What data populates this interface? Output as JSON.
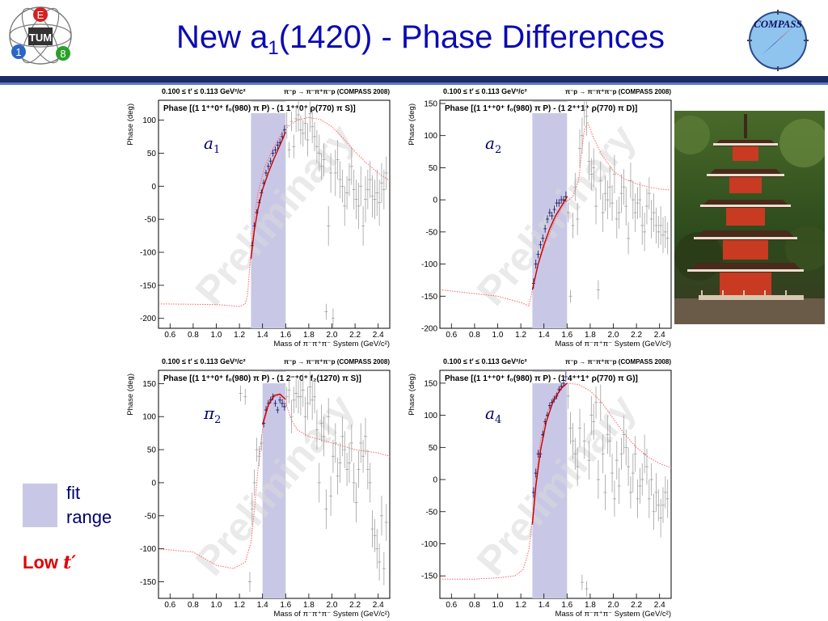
{
  "slide": {
    "title_main": "New a",
    "title_sub": "1",
    "title_rest": "(1420) - Phase Differences",
    "legend_label": "fit\nrange",
    "low_label": "Low ",
    "low_t": "t′",
    "left_logo_letters": [
      "E",
      "1",
      "8"
    ],
    "left_logo_center": "TUM",
    "right_logo_text": "COMPASS",
    "colors": {
      "title": "#0a0ab4",
      "header_bar": "#1d2b66",
      "fit_band": "#c8c8e6",
      "fit_curve": "#cc0000",
      "model_curve": "#ff6060",
      "low_t": "#e00000"
    }
  },
  "chart_data": [
    {
      "type": "scatter",
      "label": "a_1",
      "title_top": "0.100 ≤ t′ ≤ 0.113 GeV²/c²",
      "title_right": "π⁻p → π⁻π⁺π⁻p (COMPASS 2008)",
      "subtitle": "Phase [(1 1⁺⁺0⁺ f₀(980) π P) - (1 1⁺⁺0⁺ ρ(770) π S)]",
      "xlabel": "Mass of π⁻π⁺π⁻ System (GeV/c²)",
      "ylabel": "Phase (deg)",
      "xlim": [
        0.5,
        2.5
      ],
      "ylim": [
        -215,
        130
      ],
      "xticks": [
        0.6,
        0.8,
        1.0,
        1.2,
        1.4,
        1.6,
        1.8,
        2.0,
        2.2,
        2.4
      ],
      "xtick_labels": [
        "0.6",
        "0.8",
        "1.0",
        "1.2",
        "1.4",
        "1.6",
        "1.8",
        "2.0",
        "2.2",
        "2.4"
      ],
      "yticks": [
        -200,
        -150,
        -100,
        -50,
        0,
        50,
        100
      ],
      "ytick_labels": [
        "-200",
        "-150",
        "-100",
        "-50",
        "0",
        "50",
        "100"
      ],
      "fit_range": [
        1.3,
        1.6
      ],
      "watermark": "Preliminary",
      "model_curve": {
        "x": [
          0.5,
          1.0,
          1.2,
          1.25,
          1.27,
          1.29,
          1.32,
          1.36,
          1.42,
          1.5,
          1.58,
          1.7,
          1.8,
          1.9,
          2.0,
          2.1,
          2.2,
          2.3,
          2.4,
          2.5
        ],
        "y": [
          -178,
          -179,
          -182,
          -178,
          -165,
          -120,
          -60,
          -10,
          30,
          60,
          85,
          100,
          104,
          101,
          90,
          72,
          52,
          35,
          20,
          8
        ]
      },
      "fit_curve": {
        "x": [
          1.3,
          1.33,
          1.36,
          1.4,
          1.45,
          1.5,
          1.55,
          1.6
        ],
        "y": [
          -110,
          -65,
          -35,
          -5,
          20,
          42,
          62,
          82
        ]
      },
      "points": {
        "x": [
          1.31,
          1.33,
          1.35,
          1.37,
          1.39,
          1.41,
          1.43,
          1.45,
          1.47,
          1.49,
          1.51,
          1.53,
          1.55,
          1.57,
          1.59,
          1.61,
          1.63,
          1.65,
          1.67,
          1.69,
          1.71,
          1.73,
          1.75,
          1.77,
          1.79,
          1.81,
          1.83,
          1.85,
          1.87,
          1.89,
          1.91,
          1.93,
          1.95,
          1.97,
          1.99,
          2.01,
          2.03,
          2.05,
          2.07,
          2.09,
          2.11,
          2.13,
          2.15,
          2.17,
          2.19,
          2.21,
          2.23,
          2.25,
          2.27,
          2.29,
          2.31,
          2.33,
          2.35,
          2.37,
          2.39,
          2.41,
          2.43,
          2.45,
          2.47
        ],
        "y": [
          -90,
          -60,
          -40,
          -25,
          -10,
          5,
          20,
          30,
          38,
          50,
          55,
          62,
          66,
          75,
          85,
          92,
          55,
          98,
          60,
          102,
          108,
          85,
          80,
          95,
          70,
          110,
          90,
          75,
          60,
          50,
          30,
          40,
          -190,
          -60,
          20,
          -200,
          20,
          40,
          10,
          0,
          -30,
          -10,
          10,
          30,
          -5,
          -20,
          -30,
          0,
          -60,
          -20,
          -5,
          10,
          -15,
          -20,
          -10,
          -25,
          5,
          -5,
          20
        ],
        "err": [
          6,
          5,
          5,
          5,
          5,
          5,
          5,
          5,
          5,
          5,
          5,
          6,
          6,
          6,
          7,
          20,
          12,
          15,
          18,
          20,
          25,
          22,
          20,
          25,
          25,
          28,
          25,
          22,
          25,
          28,
          20,
          25,
          12,
          30,
          30,
          15,
          35,
          30,
          28,
          25,
          30,
          25,
          25,
          28,
          30,
          30,
          35,
          30,
          30,
          35,
          30,
          28,
          32,
          30,
          35,
          35,
          30,
          30,
          25
        ]
      }
    },
    {
      "type": "scatter",
      "label": "a_2",
      "title_top": "0.100 ≤ t′ ≤ 0.113 GeV²/c²",
      "title_right": "π⁻p → π⁻π⁺π⁻p (COMPASS 2008)",
      "subtitle": "Phase [(1 1⁺⁺0⁺ f₀(980) π P) - (1 2⁺⁺1⁺ ρ(770) π D)]",
      "xlabel": "Mass of π⁻π⁺π⁻ System (GeV/c²)",
      "ylabel": "Phase (deg)",
      "xlim": [
        0.5,
        2.5
      ],
      "ylim": [
        -200,
        155
      ],
      "xticks": [
        0.6,
        0.8,
        1.0,
        1.2,
        1.4,
        1.6,
        1.8,
        2.0,
        2.2,
        2.4
      ],
      "xtick_labels": [
        "0.6",
        "0.8",
        "1.0",
        "1.2",
        "1.4",
        "1.6",
        "1.8",
        "2.0",
        "2.2",
        "2.4"
      ],
      "yticks": [
        -200,
        -150,
        -100,
        -50,
        0,
        50,
        100,
        150
      ],
      "ytick_labels": [
        "-200",
        "-150",
        "-100",
        "-50",
        "0",
        "50",
        "100",
        "150"
      ],
      "fit_range": [
        1.3,
        1.6
      ],
      "watermark": "Preliminary",
      "model_curve": {
        "x": [
          0.5,
          1.0,
          1.2,
          1.27,
          1.3,
          1.35,
          1.42,
          1.5,
          1.58,
          1.65,
          1.7,
          1.73,
          1.75,
          1.78,
          1.82,
          1.9,
          2.0,
          2.1,
          2.2,
          2.3,
          2.4,
          2.5
        ],
        "y": [
          -140,
          -150,
          -160,
          -165,
          -140,
          -100,
          -65,
          -30,
          -5,
          5,
          30,
          80,
          110,
          120,
          100,
          70,
          45,
          32,
          25,
          20,
          17,
          15
        ]
      },
      "fit_curve": {
        "x": [
          1.3,
          1.35,
          1.4,
          1.45,
          1.5,
          1.55,
          1.6
        ],
        "y": [
          -140,
          -100,
          -70,
          -45,
          -25,
          -10,
          5
        ]
      },
      "points": {
        "x": [
          1.31,
          1.33,
          1.35,
          1.37,
          1.39,
          1.41,
          1.43,
          1.45,
          1.47,
          1.49,
          1.51,
          1.53,
          1.55,
          1.57,
          1.59,
          1.61,
          1.63,
          1.65,
          1.67,
          1.69,
          1.71,
          1.73,
          1.75,
          1.77,
          1.79,
          1.81,
          1.83,
          1.85,
          1.87,
          1.89,
          1.91,
          1.93,
          1.95,
          1.97,
          1.99,
          2.01,
          2.03,
          2.05,
          2.07,
          2.09,
          2.11,
          2.13,
          2.15,
          2.17,
          2.19,
          2.21,
          2.23,
          2.25,
          2.27,
          2.29,
          2.31,
          2.33,
          2.35,
          2.37,
          2.39,
          2.41,
          2.43,
          2.45,
          2.47
        ],
        "y": [
          -130,
          -100,
          -85,
          -70,
          -60,
          -45,
          -30,
          -20,
          -25,
          -15,
          -5,
          -5,
          0,
          0,
          5,
          -20,
          -150,
          -40,
          20,
          -30,
          80,
          100,
          140,
          130,
          60,
          40,
          50,
          -10,
          -140,
          30,
          -20,
          10,
          0,
          20,
          -5,
          40,
          -30,
          -20,
          10,
          20,
          -10,
          -60,
          30,
          0,
          -20,
          -5,
          0,
          -40,
          -50,
          -10,
          10,
          -30,
          -20,
          -40,
          -50,
          -40,
          -55,
          -50,
          -60
        ],
        "err": [
          8,
          7,
          6,
          6,
          6,
          6,
          6,
          6,
          6,
          6,
          6,
          6,
          6,
          6,
          8,
          15,
          10,
          20,
          22,
          25,
          30,
          28,
          25,
          30,
          30,
          25,
          30,
          28,
          15,
          30,
          30,
          28,
          30,
          32,
          28,
          30,
          30,
          25,
          30,
          28,
          30,
          25,
          28,
          30,
          30,
          25,
          28,
          30,
          30,
          28,
          25,
          30,
          30,
          28,
          25,
          30,
          28,
          25,
          25
        ]
      }
    },
    {
      "type": "scatter",
      "label": "π_2",
      "title_top": "0.100 ≤ t′ ≤ 0.113 GeV²/c²",
      "title_right": "π⁻p → π⁻π⁺π⁻p (COMPASS 2008)",
      "subtitle": "Phase [(1 1⁺⁺0⁺ f₀(980) π P) - (1 2⁻⁺0⁺ f₂(1270) π S)]",
      "xlabel": "Mass of π⁻π⁺π⁻ System (GeV/c²)",
      "ylabel": "Phase (deg)",
      "xlim": [
        0.5,
        2.5
      ],
      "ylim": [
        -175,
        170
      ],
      "xticks": [
        0.6,
        0.8,
        1.0,
        1.2,
        1.4,
        1.6,
        1.8,
        2.0,
        2.2,
        2.4
      ],
      "xtick_labels": [
        "0.6",
        "0.8",
        "1.0",
        "1.2",
        "1.4",
        "1.6",
        "1.8",
        "2.0",
        "2.2",
        "2.4"
      ],
      "yticks": [
        -150,
        -100,
        -50,
        0,
        50,
        100,
        150
      ],
      "ytick_labels": [
        "-150",
        "-100",
        "-50",
        "0",
        "50",
        "100",
        "150"
      ],
      "fit_range": [
        1.4,
        1.6
      ],
      "watermark": "Preliminary",
      "model_curve": {
        "x": [
          0.5,
          0.8,
          1.0,
          1.15,
          1.25,
          1.3,
          1.33,
          1.36,
          1.4,
          1.45,
          1.5,
          1.55,
          1.6,
          1.65,
          1.7,
          1.8,
          1.9,
          2.0,
          2.2,
          2.4,
          2.5
        ],
        "y": [
          -100,
          -105,
          -125,
          -130,
          -120,
          -90,
          -40,
          20,
          80,
          115,
          130,
          132,
          120,
          95,
          80,
          70,
          65,
          60,
          50,
          45,
          40
        ]
      },
      "fit_curve": {
        "x": [
          1.4,
          1.45,
          1.5,
          1.55,
          1.6
        ],
        "y": [
          88,
          118,
          132,
          134,
          126
        ]
      },
      "points": {
        "x": [
          1.21,
          1.25,
          1.29,
          1.31,
          1.33,
          1.35,
          1.37,
          1.39,
          1.41,
          1.43,
          1.45,
          1.47,
          1.49,
          1.51,
          1.53,
          1.55,
          1.57,
          1.59,
          1.61,
          1.63,
          1.65,
          1.67,
          1.69,
          1.71,
          1.73,
          1.75,
          1.77,
          1.79,
          1.81,
          1.83,
          1.85,
          1.87,
          1.89,
          1.91,
          1.93,
          1.95,
          1.97,
          1.99,
          2.01,
          2.03,
          2.05,
          2.07,
          2.09,
          2.11,
          2.13,
          2.15,
          2.17,
          2.19,
          2.21,
          2.23,
          2.25,
          2.27,
          2.29,
          2.31,
          2.33,
          2.35,
          2.37,
          2.39,
          2.41,
          2.43,
          2.45,
          2.47
        ],
        "y": [
          135,
          130,
          -150,
          -40,
          0,
          50,
          40,
          60,
          90,
          110,
          120,
          125,
          130,
          120,
          110,
          125,
          120,
          115,
          130,
          140,
          100,
          125,
          135,
          130,
          130,
          140,
          100,
          120,
          145,
          125,
          130,
          80,
          0,
          90,
          70,
          -40,
          100,
          -20,
          40,
          60,
          10,
          30,
          70,
          50,
          20,
          30,
          60,
          0,
          -30,
          20,
          60,
          40,
          70,
          20,
          0,
          -70,
          -80,
          -100,
          -120,
          -50,
          -130,
          -60
        ],
        "err": [
          12,
          12,
          15,
          25,
          20,
          18,
          15,
          12,
          6,
          6,
          5,
          5,
          5,
          5,
          5,
          5,
          6,
          6,
          15,
          20,
          25,
          20,
          22,
          25,
          28,
          25,
          30,
          25,
          28,
          30,
          25,
          30,
          30,
          28,
          30,
          30,
          28,
          30,
          25,
          30,
          28,
          30,
          30,
          28,
          25,
          30,
          28,
          30,
          30,
          28,
          30,
          25,
          28,
          30,
          30,
          28,
          25,
          30,
          28,
          30,
          25,
          28
        ]
      }
    },
    {
      "type": "scatter",
      "label": "a_4",
      "title_top": "0.100 ≤ t′ ≤ 0.113 GeV²/c²",
      "title_right": "π⁻p → π⁻π⁺π⁻p (COMPASS 2008)",
      "subtitle": "Phase [(1 1⁺⁺0⁺ f₀(980) π P) - (1 4⁺⁺1⁺ ρ(770) π G)]",
      "xlabel": "Mass of π⁻π⁺π⁻ System (GeV/c²)",
      "ylabel": "Phase (deg)",
      "xlim": [
        0.5,
        2.5
      ],
      "ylim": [
        -185,
        170
      ],
      "xticks": [
        0.6,
        0.8,
        1.0,
        1.2,
        1.4,
        1.6,
        1.8,
        2.0,
        2.2,
        2.4
      ],
      "xtick_labels": [
        "0.6",
        "0.8",
        "1.0",
        "1.2",
        "1.4",
        "1.6",
        "1.8",
        "2.0",
        "2.2",
        "2.4"
      ],
      "yticks": [
        -150,
        -100,
        -50,
        0,
        50,
        100,
        150
      ],
      "ytick_labels": [
        "-150",
        "-100",
        "-50",
        "0",
        "50",
        "100",
        "150"
      ],
      "fit_range": [
        1.3,
        1.6
      ],
      "watermark": "Preliminary",
      "model_curve": {
        "x": [
          0.5,
          0.8,
          1.0,
          1.15,
          1.22,
          1.27,
          1.3,
          1.33,
          1.37,
          1.42,
          1.48,
          1.55,
          1.6,
          1.7,
          1.8,
          1.9,
          2.0,
          2.1,
          2.2,
          2.3,
          2.4,
          2.5
        ],
        "y": [
          -155,
          -155,
          -153,
          -150,
          -140,
          -110,
          -60,
          0,
          60,
          100,
          128,
          145,
          150,
          148,
          138,
          120,
          95,
          70,
          50,
          35,
          25,
          18
        ]
      },
      "fit_curve": {
        "x": [
          1.3,
          1.33,
          1.37,
          1.42,
          1.48,
          1.55,
          1.6
        ],
        "y": [
          -70,
          -10,
          45,
          90,
          122,
          142,
          150
        ]
      },
      "points": {
        "x": [
          1.31,
          1.33,
          1.35,
          1.37,
          1.39,
          1.41,
          1.43,
          1.45,
          1.47,
          1.49,
          1.51,
          1.53,
          1.55,
          1.57,
          1.59,
          1.61,
          1.63,
          1.65,
          1.67,
          1.69,
          1.71,
          1.73,
          1.75,
          1.77,
          1.79,
          1.81,
          1.83,
          1.85,
          1.87,
          1.89,
          1.91,
          1.93,
          1.95,
          1.97,
          1.99,
          2.01,
          2.03,
          2.05,
          2.07,
          2.09,
          2.11,
          2.13,
          2.15,
          2.17,
          2.19,
          2.21,
          2.23,
          2.25,
          2.27,
          2.29,
          2.31,
          2.33,
          2.35,
          2.37,
          2.39,
          2.41,
          2.43,
          2.45,
          2.47
        ],
        "y": [
          -20,
          10,
          40,
          40,
          70,
          90,
          100,
          115,
          120,
          125,
          130,
          140,
          145,
          150,
          160,
          130,
          80,
          60,
          40,
          20,
          80,
          -160,
          60,
          -170,
          30,
          100,
          90,
          120,
          0,
          120,
          40,
          -20,
          70,
          60,
          10,
          -30,
          30,
          -10,
          40,
          70,
          50,
          20,
          -20,
          10,
          40,
          -30,
          -10,
          0,
          40,
          20,
          -30,
          0,
          -50,
          -20,
          -40,
          -60,
          -40,
          -20,
          -30
        ],
        "err": [
          8,
          7,
          6,
          6,
          6,
          5,
          5,
          5,
          5,
          5,
          5,
          5,
          6,
          6,
          8,
          20,
          25,
          28,
          25,
          30,
          30,
          12,
          28,
          12,
          30,
          30,
          28,
          25,
          30,
          28,
          30,
          28,
          30,
          25,
          30,
          28,
          30,
          28,
          25,
          30,
          28,
          30,
          25,
          30,
          28,
          30,
          28,
          25,
          30,
          28,
          30,
          25,
          28,
          30,
          25,
          30,
          28,
          25,
          30
        ]
      }
    }
  ]
}
